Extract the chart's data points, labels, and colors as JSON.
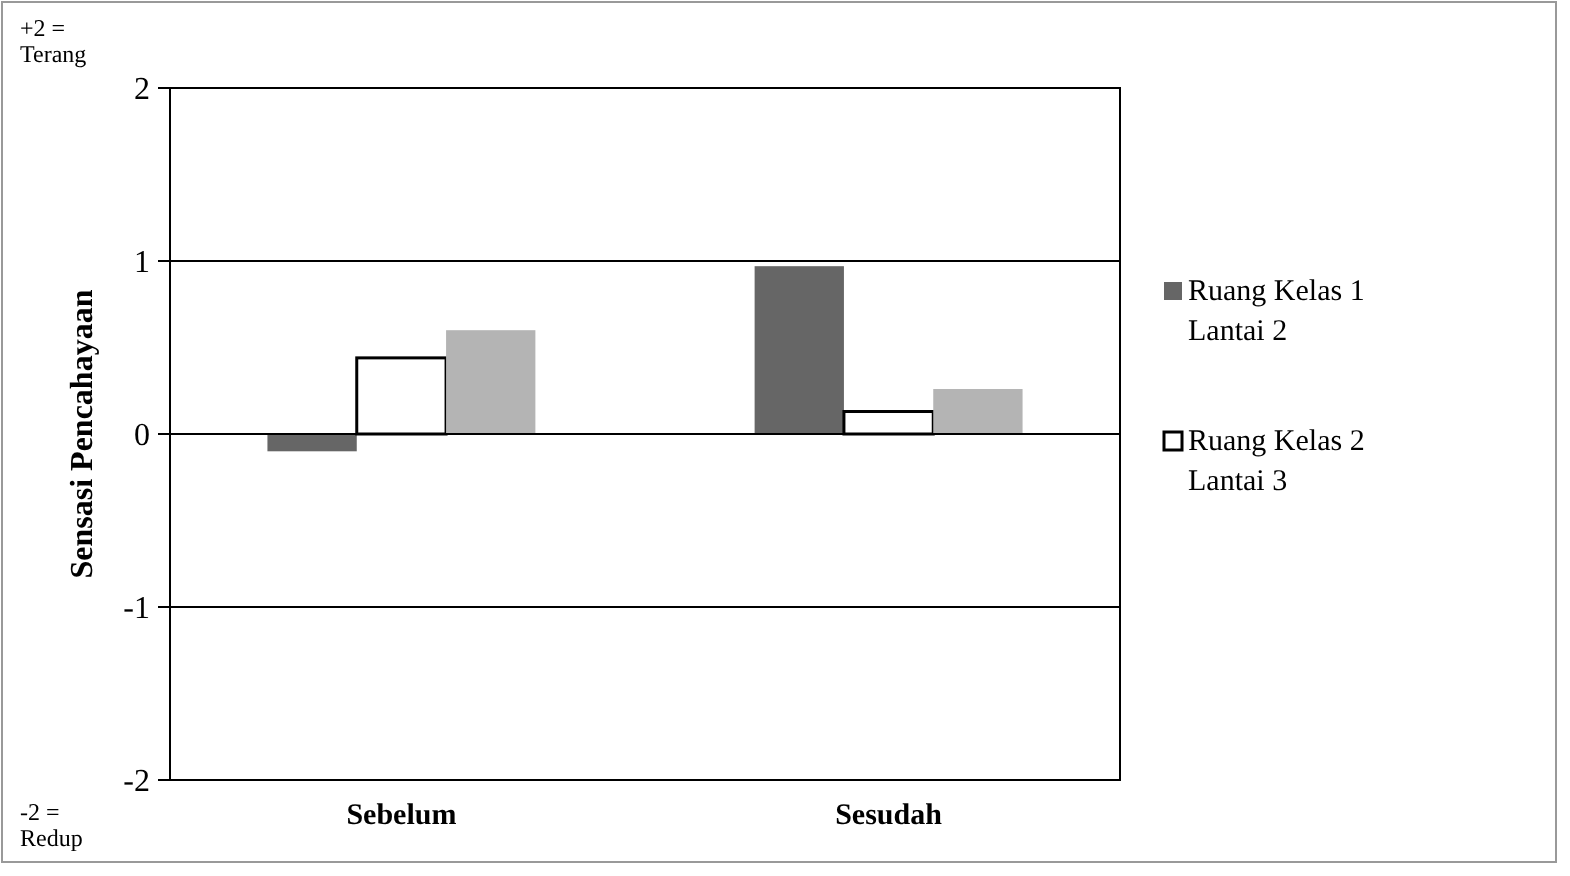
{
  "chart_data": {
    "type": "bar",
    "ylabel": "Sensasi Pencahayaan",
    "categories": [
      "Sebelum",
      "Sesudah"
    ],
    "series": [
      {
        "name": "Ruang Kelas 1 Lantai 2",
        "color": "#666666",
        "values": [
          -0.1,
          0.97
        ]
      },
      {
        "name": "Ruang Kelas 2 Lantai 3",
        "color": "#ffffff",
        "values": [
          0.44,
          0.13
        ]
      },
      {
        "color": "#b4b4b4",
        "values": [
          0.6,
          0.26
        ]
      }
    ],
    "ylim": [
      -2,
      2
    ],
    "yticks": [
      -2,
      -1,
      0,
      1,
      2
    ],
    "grid": "y",
    "legend": "right",
    "annotations": [
      "+2 = Terang",
      "-2 = Redup"
    ]
  }
}
